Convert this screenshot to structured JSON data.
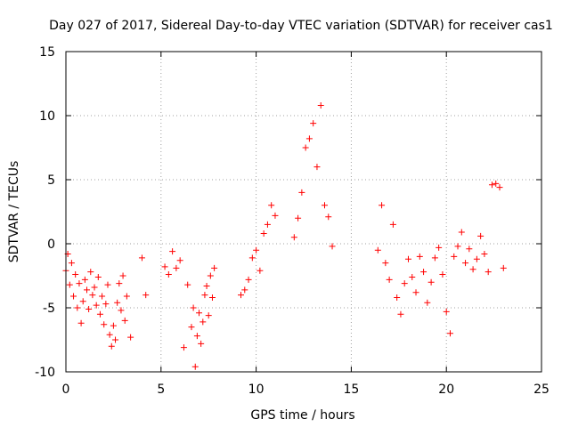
{
  "chart_data": {
    "type": "scatter",
    "title": "Day 027 of 2017, Sidereal Day-to-day VTEC variation (SDTVAR) for receiver cas1",
    "xlabel": "GPS time / hours",
    "ylabel": "SDTVAR / TECUs",
    "xlim": [
      0,
      25
    ],
    "ylim": [
      -10,
      15
    ],
    "xticks": [
      "0",
      "5",
      "10",
      "15",
      "20",
      "25"
    ],
    "yticks": [
      "-10",
      "-5",
      "0",
      "5",
      "10",
      "15"
    ],
    "grid": true,
    "marker": "+",
    "color": "#ff0000",
    "series": [
      {
        "name": "SDTVAR",
        "x": [
          0.0,
          0.1,
          0.2,
          0.3,
          0.4,
          0.5,
          0.6,
          0.7,
          0.8,
          0.9,
          1.0,
          1.1,
          1.2,
          1.3,
          1.4,
          1.5,
          1.6,
          1.7,
          1.8,
          1.9,
          2.0,
          2.1,
          2.2,
          2.3,
          2.4,
          2.5,
          2.6,
          2.7,
          2.8,
          2.9,
          3.0,
          3.1,
          3.2,
          3.4,
          4.0,
          4.2,
          5.2,
          5.4,
          5.6,
          5.8,
          6.0,
          6.2,
          6.4,
          6.6,
          6.7,
          6.8,
          6.9,
          7.0,
          7.1,
          7.2,
          7.3,
          7.4,
          7.5,
          7.6,
          7.7,
          7.8,
          9.2,
          9.4,
          9.6,
          9.8,
          10.0,
          10.2,
          10.4,
          10.6,
          10.8,
          11.0,
          12.0,
          12.2,
          12.4,
          12.6,
          12.8,
          13.0,
          13.2,
          13.4,
          13.6,
          13.8,
          14.0,
          16.4,
          16.6,
          16.8,
          17.0,
          17.2,
          17.4,
          17.6,
          17.8,
          18.0,
          18.2,
          18.4,
          18.6,
          18.8,
          19.0,
          19.2,
          19.4,
          19.6,
          19.8,
          20.0,
          20.2,
          20.4,
          20.6,
          20.8,
          21.0,
          21.2,
          21.4,
          21.6,
          21.8,
          22.0,
          22.2,
          22.4,
          22.6,
          22.8,
          23.0
        ],
        "y": [
          -2.1,
          -0.8,
          -3.2,
          -1.5,
          -4.1,
          -2.4,
          -5.0,
          -3.1,
          -6.2,
          -4.5,
          -2.8,
          -3.6,
          -5.1,
          -2.2,
          -4.0,
          -3.4,
          -4.8,
          -2.6,
          -5.5,
          -4.1,
          -6.3,
          -4.7,
          -3.2,
          -7.1,
          -8.0,
          -6.4,
          -7.5,
          -4.6,
          -3.1,
          -5.2,
          -2.5,
          -6.0,
          -4.1,
          -7.3,
          -1.1,
          -4.0,
          -1.8,
          -2.4,
          -0.6,
          -1.9,
          -1.3,
          -8.1,
          -3.2,
          -6.5,
          -5.0,
          -9.6,
          -7.2,
          -5.4,
          -7.8,
          -6.1,
          -4.0,
          -3.3,
          -5.6,
          -2.5,
          -4.2,
          -1.9,
          -4.0,
          -3.6,
          -2.8,
          -1.1,
          -0.5,
          -2.1,
          0.8,
          1.5,
          3.0,
          2.2,
          0.5,
          2.0,
          4.0,
          7.5,
          8.2,
          9.4,
          6.0,
          10.8,
          3.0,
          2.1,
          -0.2,
          -0.5,
          3.0,
          -1.5,
          -2.8,
          1.5,
          -4.2,
          -5.5,
          -3.1,
          -1.2,
          -2.6,
          -3.8,
          -1.0,
          -2.2,
          -4.6,
          -3.0,
          -1.1,
          -0.3,
          -2.4,
          -5.3,
          -7.0,
          -1.0,
          -0.2,
          0.9,
          -1.5,
          -0.4,
          -2.0,
          -1.2,
          0.6,
          -0.8,
          -2.2,
          4.6,
          4.7,
          4.4,
          -1.9
        ]
      }
    ]
  }
}
